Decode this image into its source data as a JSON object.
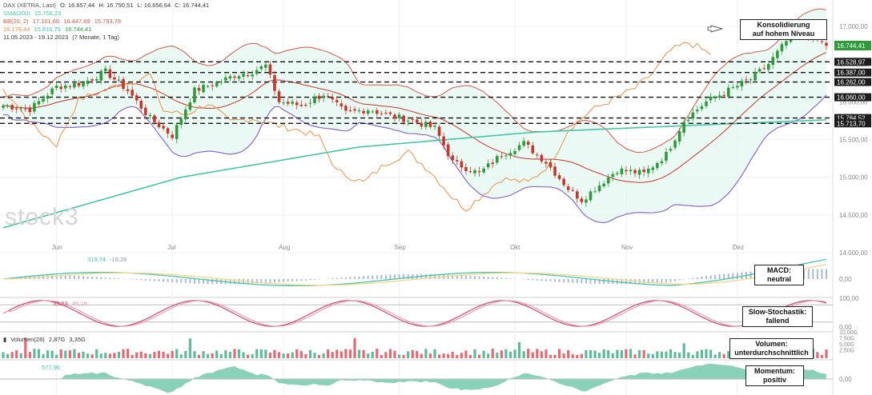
{
  "colors": {
    "candle_up": "#2e9a3a",
    "candle_down": "#c0392b",
    "sma": "#45c4a8",
    "bb": "#c95a4a",
    "ichimoku": "#e8924a",
    "cloud_green": "#c7efe4",
    "cloud_red": "#f7d2cf",
    "macd": "#45c4a8",
    "signal": "#f5d58a",
    "hist": "#a9b9d6",
    "stoch": "#c84a6a",
    "stoch_sig": "#e89aac",
    "vol_up": "#5fb99a",
    "vol_down": "#e06b75",
    "mom_pos": "#6cc7a8",
    "mom_neg": "#ef8b95"
  },
  "legend": {
    "dax": "DAX (XETRA, Last)",
    "dax_o": "O: 16.657,44",
    "dax_h": "H: 16.750,51",
    "dax_l": "L: 16.656,64",
    "dax_c": "C: 16.744,41",
    "sma": "SMA(200)",
    "sma_val": "15.756,23",
    "bb": "BB(20, 2)",
    "bb_v1": "17.101,60",
    "bb_v2": "16.447,69",
    "bb_v3": "15.793,78",
    "ichi_a": "16.178,44",
    "ichi_b": "15.816,75",
    "ichi_c": "16.744,41",
    "range": "11.05.2023 - 19.12.2023",
    "range_note": "(7 Monate, 1 Tag)",
    "macd_v1": "319,74",
    "macd_v2": "-16,26",
    "stoch_v1": "33,23",
    "stoch_v2": "46,18",
    "vol": "Volumen(28)",
    "vol_v1": "2,87G",
    "vol_v2": "3,35G",
    "mom_v": "577,96"
  },
  "annotations": {
    "konsolidierung": "Konsolidierung\nauf hohem Niveau",
    "macd": "MACD:\nneutral",
    "stoch": "Slow-Stochastik:\nfallend",
    "vol": "Volumen:\nunterdurchschnittlich",
    "mom": "Momentum:\npositiv"
  },
  "watermark": "stock3",
  "chart_data": {
    "type": "candlestick",
    "x_months": [
      "Jun",
      "Jul",
      "Aug",
      "Sep",
      "Okt",
      "Nov",
      "Dez"
    ],
    "ylim": [
      14000,
      17200
    ],
    "y_ticks": [
      "17.000,00",
      "16.500,00",
      "16.000,00",
      "15.500,00",
      "15.000,00",
      "14.500,00",
      "14.000,00"
    ],
    "y_tick_values": [
      17000,
      16500,
      16000,
      15500,
      15000,
      14500,
      14000
    ],
    "last_price_label": "16.744,41",
    "last_price": 16744.41,
    "levels": [
      {
        "value": 16528.97,
        "label": "16.528,97"
      },
      {
        "value": 16387.0,
        "label": "16.387,00"
      },
      {
        "value": 16262.0,
        "label": "16.262,00"
      },
      {
        "value": 16060.0,
        "label": "16.060,00"
      },
      {
        "value": 15784.52,
        "label": "15.784,52"
      },
      {
        "value": 15713.7,
        "label": "15.713,70"
      }
    ],
    "close_anchors": [
      [
        0,
        15950
      ],
      [
        6,
        15900
      ],
      [
        12,
        16200
      ],
      [
        18,
        16250
      ],
      [
        23,
        16400
      ],
      [
        28,
        16150
      ],
      [
        33,
        15780
      ],
      [
        38,
        15550
      ],
      [
        43,
        16150
      ],
      [
        48,
        16250
      ],
      [
        52,
        16350
      ],
      [
        56,
        16400
      ],
      [
        59,
        16480
      ],
      [
        62,
        16000
      ],
      [
        67,
        15950
      ],
      [
        72,
        16100
      ],
      [
        77,
        15850
      ],
      [
        82,
        15900
      ],
      [
        88,
        15800
      ],
      [
        92,
        15750
      ],
      [
        97,
        15650
      ],
      [
        101,
        15200
      ],
      [
        107,
        15050
      ],
      [
        112,
        15300
      ],
      [
        117,
        15450
      ],
      [
        122,
        15200
      ],
      [
        127,
        14850
      ],
      [
        130,
        14700
      ],
      [
        134,
        14900
      ],
      [
        138,
        15100
      ],
      [
        144,
        15050
      ],
      [
        149,
        15300
      ],
      [
        153,
        15750
      ],
      [
        158,
        16000
      ],
      [
        163,
        16150
      ],
      [
        168,
        16300
      ],
      [
        172,
        16500
      ],
      [
        176,
        16800
      ],
      [
        180,
        16900
      ],
      [
        182,
        16850
      ],
      [
        185,
        16744
      ]
    ],
    "sma200_anchors": [
      [
        0,
        14330
      ],
      [
        40,
        15000
      ],
      [
        80,
        15400
      ],
      [
        120,
        15600
      ],
      [
        160,
        15700
      ],
      [
        185,
        15760
      ]
    ],
    "indicators": {
      "macd_yticks": [
        "0,00"
      ],
      "stoch_yticks": [
        "100,00",
        "0,00"
      ],
      "vol_yticks": [
        "10,00G",
        "7,50G",
        "5,00G",
        "2,50G"
      ],
      "mom_yticks": [
        "0,00"
      ]
    }
  }
}
